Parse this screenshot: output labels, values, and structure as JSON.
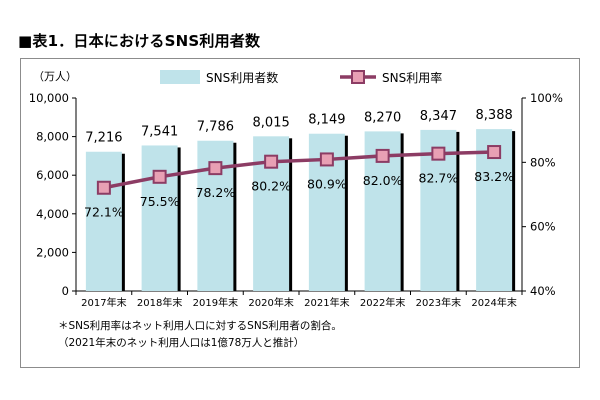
{
  "title": "■表1．日本におけるSNS利用者数",
  "notes": {
    "line1": "＊SNS利用率はネット利用人口に対するSNS利用者の割合。",
    "line2": "（2021年末のネット利用人口は1億78万人と推計）"
  },
  "colors": {
    "bar_fill": "#bfe3ea",
    "bar_shadow": "#000000",
    "line": "#8c3c64",
    "marker": "#e8a0b4"
  },
  "chart_data": {
    "type": "bar+line",
    "categories": [
      "2017年末",
      "2018年末",
      "2019年末",
      "2020年末",
      "2021年末",
      "2022年末",
      "2023年末",
      "2024年末"
    ],
    "series": [
      {
        "name": "SNS利用者数",
        "type": "bar",
        "axis": "left",
        "values": [
          7216,
          7541,
          7786,
          8015,
          8149,
          8270,
          8347,
          8388
        ],
        "labels": [
          "7,216",
          "7,541",
          "7,786",
          "8,015",
          "8,149",
          "8,270",
          "8,347",
          "8,388"
        ]
      },
      {
        "name": "SNS利用率",
        "type": "line",
        "axis": "right",
        "values": [
          72.1,
          75.5,
          78.2,
          80.2,
          80.9,
          82.0,
          82.7,
          83.2
        ],
        "labels": [
          "72.1%",
          "75.5%",
          "78.2%",
          "80.2%",
          "80.9%",
          "82.0%",
          "82.7%",
          "83.2%"
        ]
      }
    ],
    "left_axis": {
      "unit_label": "（万人）",
      "range": [
        0,
        10000
      ],
      "ticks": [
        0,
        2000,
        4000,
        6000,
        8000,
        10000
      ],
      "tick_labels": [
        "0",
        "2,000",
        "4,000",
        "6,000",
        "8,000",
        "10,000"
      ]
    },
    "right_axis": {
      "range": [
        40,
        100
      ],
      "ticks": [
        40,
        60,
        80,
        100
      ],
      "tick_labels": [
        "40%",
        "60%",
        "80%",
        "100%"
      ]
    },
    "legend": "top-center",
    "grid": false
  }
}
